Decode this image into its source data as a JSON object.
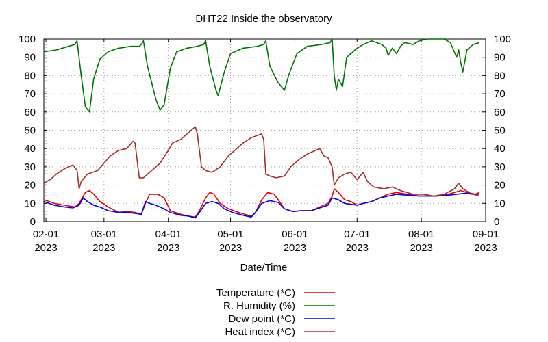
{
  "chart_data": {
    "type": "line",
    "title": "DHT22 Inside the observatory",
    "xlabel": "Date/Time",
    "ylabel": "",
    "ylim": [
      0,
      100
    ],
    "y_ticks": [
      0,
      10,
      20,
      30,
      40,
      50,
      60,
      70,
      80,
      90,
      100
    ],
    "y_ticks_mirrored_right": true,
    "xlim": [
      "2023-01-31",
      "2023-09-01"
    ],
    "x_ticks": [
      {
        "date": "2023-02-01",
        "label": "02-01",
        "year": "2023"
      },
      {
        "date": "2023-03-01",
        "label": "03-01",
        "year": "2023"
      },
      {
        "date": "2023-04-01",
        "label": "04-01",
        "year": "2023"
      },
      {
        "date": "2023-05-01",
        "label": "05-01",
        "year": "2023"
      },
      {
        "date": "2023-06-01",
        "label": "06-01",
        "year": "2023"
      },
      {
        "date": "2023-07-01",
        "label": "07-01",
        "year": "2023"
      },
      {
        "date": "2023-08-01",
        "label": "08-01",
        "year": "2023"
      },
      {
        "date": "2023-09-01",
        "label": "09-01",
        "year": "2023"
      }
    ],
    "grid": true,
    "legend_position": "bottom-center",
    "series": [
      {
        "name": "Temperature (*C)",
        "color": "#e00000",
        "points": [
          [
            "2023-01-31",
            12
          ],
          [
            "2023-02-05",
            10
          ],
          [
            "2023-02-10",
            9
          ],
          [
            "2023-02-15",
            8
          ],
          [
            "2023-02-17",
            10
          ],
          [
            "2023-02-20",
            16
          ],
          [
            "2023-02-22",
            17
          ],
          [
            "2023-02-24",
            15
          ],
          [
            "2023-02-27",
            11
          ],
          [
            "2023-03-03",
            8
          ],
          [
            "2023-03-08",
            5
          ],
          [
            "2023-03-12",
            5.5
          ],
          [
            "2023-03-16",
            5
          ],
          [
            "2023-03-19",
            4
          ],
          [
            "2023-03-21",
            10
          ],
          [
            "2023-03-23",
            15
          ],
          [
            "2023-03-27",
            15
          ],
          [
            "2023-03-30",
            13
          ],
          [
            "2023-04-02",
            6
          ],
          [
            "2023-04-07",
            4
          ],
          [
            "2023-04-11",
            3
          ],
          [
            "2023-04-14",
            2.5
          ],
          [
            "2023-04-16",
            6
          ],
          [
            "2023-04-19",
            13
          ],
          [
            "2023-04-21",
            16
          ],
          [
            "2023-04-23",
            15
          ],
          [
            "2023-04-26",
            10
          ],
          [
            "2023-04-30",
            7
          ],
          [
            "2023-05-05",
            5
          ],
          [
            "2023-05-11",
            3
          ],
          [
            "2023-05-13",
            5
          ],
          [
            "2023-05-16",
            12
          ],
          [
            "2023-05-19",
            16
          ],
          [
            "2023-05-22",
            15
          ],
          [
            "2023-05-24",
            12
          ],
          [
            "2023-05-27",
            7
          ],
          [
            "2023-05-31",
            5.5
          ],
          [
            "2023-06-04",
            6
          ],
          [
            "2023-06-09",
            6
          ],
          [
            "2023-06-13",
            8
          ],
          [
            "2023-06-17",
            10
          ],
          [
            "2023-06-19",
            14
          ],
          [
            "2023-06-20",
            18
          ],
          [
            "2023-06-22",
            16
          ],
          [
            "2023-06-25",
            12
          ],
          [
            "2023-06-28",
            11
          ],
          [
            "2023-07-01",
            9
          ],
          [
            "2023-07-04",
            10
          ],
          [
            "2023-07-08",
            11
          ],
          [
            "2023-07-12",
            13
          ],
          [
            "2023-07-16",
            15
          ],
          [
            "2023-07-20",
            16
          ],
          [
            "2023-07-25",
            15
          ],
          [
            "2023-07-31",
            14
          ],
          [
            "2023-08-08",
            14
          ],
          [
            "2023-08-14",
            15
          ],
          [
            "2023-08-17",
            16
          ],
          [
            "2023-08-20",
            17
          ],
          [
            "2023-08-23",
            16
          ],
          [
            "2023-08-27",
            15
          ],
          [
            "2023-08-29",
            16
          ]
        ]
      },
      {
        "name": "R. Humidity (%)",
        "color": "#007000",
        "points": [
          [
            "2023-01-31",
            93
          ],
          [
            "2023-02-06",
            94
          ],
          [
            "2023-02-12",
            96
          ],
          [
            "2023-02-15",
            97
          ],
          [
            "2023-02-16",
            99
          ],
          [
            "2023-02-18",
            80
          ],
          [
            "2023-02-20",
            63
          ],
          [
            "2023-02-22",
            60
          ],
          [
            "2023-02-24",
            78
          ],
          [
            "2023-02-27",
            89
          ],
          [
            "2023-03-03",
            93
          ],
          [
            "2023-03-08",
            95
          ],
          [
            "2023-03-14",
            96
          ],
          [
            "2023-03-18",
            96
          ],
          [
            "2023-03-19",
            97
          ],
          [
            "2023-03-20",
            99
          ],
          [
            "2023-03-22",
            85
          ],
          [
            "2023-03-24",
            76
          ],
          [
            "2023-03-26",
            67
          ],
          [
            "2023-03-28",
            61
          ],
          [
            "2023-03-30",
            64
          ],
          [
            "2023-04-02",
            84
          ],
          [
            "2023-04-05",
            93
          ],
          [
            "2023-04-10",
            95
          ],
          [
            "2023-04-15",
            96
          ],
          [
            "2023-04-18",
            97
          ],
          [
            "2023-04-19",
            99
          ],
          [
            "2023-04-21",
            85
          ],
          [
            "2023-04-24",
            72
          ],
          [
            "2023-04-25",
            69
          ],
          [
            "2023-04-28",
            82
          ],
          [
            "2023-05-01",
            92
          ],
          [
            "2023-05-07",
            95
          ],
          [
            "2023-05-14",
            96
          ],
          [
            "2023-05-17",
            97
          ],
          [
            "2023-05-18",
            99
          ],
          [
            "2023-05-20",
            85
          ],
          [
            "2023-05-24",
            76
          ],
          [
            "2023-05-27",
            72
          ],
          [
            "2023-05-29",
            80
          ],
          [
            "2023-06-02",
            92
          ],
          [
            "2023-06-07",
            96
          ],
          [
            "2023-06-14",
            97
          ],
          [
            "2023-06-18",
            98
          ],
          [
            "2023-06-19",
            100
          ],
          [
            "2023-06-20",
            80
          ],
          [
            "2023-06-21",
            72
          ],
          [
            "2023-06-22",
            78
          ],
          [
            "2023-06-24",
            74
          ],
          [
            "2023-06-26",
            90
          ],
          [
            "2023-07-01",
            95
          ],
          [
            "2023-07-04",
            97
          ],
          [
            "2023-07-08",
            99
          ],
          [
            "2023-07-13",
            97
          ],
          [
            "2023-07-15",
            95
          ],
          [
            "2023-07-16",
            91
          ],
          [
            "2023-07-18",
            95
          ],
          [
            "2023-07-20",
            92
          ],
          [
            "2023-07-22",
            96
          ],
          [
            "2023-07-24",
            98
          ],
          [
            "2023-07-28",
            97
          ],
          [
            "2023-07-31",
            99
          ],
          [
            "2023-08-04",
            100
          ],
          [
            "2023-08-12",
            100
          ],
          [
            "2023-08-15",
            98
          ],
          [
            "2023-08-18",
            90
          ],
          [
            "2023-08-19",
            94
          ],
          [
            "2023-08-20",
            87
          ],
          [
            "2023-08-21",
            82
          ],
          [
            "2023-08-23",
            94
          ],
          [
            "2023-08-26",
            97
          ],
          [
            "2023-08-29",
            98
          ]
        ]
      },
      {
        "name": "Dew point (*C)",
        "color": "#0000e0",
        "points": [
          [
            "2023-01-31",
            11
          ],
          [
            "2023-02-05",
            9
          ],
          [
            "2023-02-10",
            8
          ],
          [
            "2023-02-14",
            7.5
          ],
          [
            "2023-02-17",
            9
          ],
          [
            "2023-02-19",
            13
          ],
          [
            "2023-02-21",
            11
          ],
          [
            "2023-02-24",
            9
          ],
          [
            "2023-02-27",
            8
          ],
          [
            "2023-03-03",
            6
          ],
          [
            "2023-03-08",
            5
          ],
          [
            "2023-03-12",
            5
          ],
          [
            "2023-03-16",
            4.5
          ],
          [
            "2023-03-19",
            4
          ],
          [
            "2023-03-21",
            11
          ],
          [
            "2023-03-23",
            10
          ],
          [
            "2023-03-26",
            9
          ],
          [
            "2023-03-30",
            7
          ],
          [
            "2023-04-02",
            5
          ],
          [
            "2023-04-07",
            3.5
          ],
          [
            "2023-04-11",
            3
          ],
          [
            "2023-04-14",
            2
          ],
          [
            "2023-04-16",
            5
          ],
          [
            "2023-04-19",
            10
          ],
          [
            "2023-04-22",
            11
          ],
          [
            "2023-04-25",
            10
          ],
          [
            "2023-04-28",
            7
          ],
          [
            "2023-05-02",
            5
          ],
          [
            "2023-05-07",
            3.5
          ],
          [
            "2023-05-11",
            2.5
          ],
          [
            "2023-05-13",
            5
          ],
          [
            "2023-05-16",
            10
          ],
          [
            "2023-05-20",
            11.5
          ],
          [
            "2023-05-24",
            10.5
          ],
          [
            "2023-05-27",
            7
          ],
          [
            "2023-05-31",
            5.5
          ],
          [
            "2023-06-04",
            6
          ],
          [
            "2023-06-09",
            6
          ],
          [
            "2023-06-13",
            7.5
          ],
          [
            "2023-06-17",
            9
          ],
          [
            "2023-06-19",
            13
          ],
          [
            "2023-06-22",
            12
          ],
          [
            "2023-06-25",
            10
          ],
          [
            "2023-06-28",
            9.5
          ],
          [
            "2023-07-01",
            9
          ],
          [
            "2023-07-04",
            10
          ],
          [
            "2023-07-08",
            11
          ],
          [
            "2023-07-12",
            13
          ],
          [
            "2023-07-16",
            14
          ],
          [
            "2023-07-20",
            15
          ],
          [
            "2023-07-25",
            14.5
          ],
          [
            "2023-07-31",
            14
          ],
          [
            "2023-08-08",
            14
          ],
          [
            "2023-08-14",
            14.5
          ],
          [
            "2023-08-18",
            15
          ],
          [
            "2023-08-22",
            15.5
          ],
          [
            "2023-08-26",
            15
          ],
          [
            "2023-08-29",
            15
          ]
        ]
      },
      {
        "name": "Heat index (*C)",
        "color": "#a52a2a",
        "points": [
          [
            "2023-01-31",
            21
          ],
          [
            "2023-02-03",
            23
          ],
          [
            "2023-02-06",
            26
          ],
          [
            "2023-02-10",
            29
          ],
          [
            "2023-02-14",
            31
          ],
          [
            "2023-02-16",
            28
          ],
          [
            "2023-02-17",
            18
          ],
          [
            "2023-02-18",
            22
          ],
          [
            "2023-02-21",
            26
          ],
          [
            "2023-02-26",
            28
          ],
          [
            "2023-03-01",
            32
          ],
          [
            "2023-03-04",
            36
          ],
          [
            "2023-03-08",
            39
          ],
          [
            "2023-03-12",
            40
          ],
          [
            "2023-03-15",
            44
          ],
          [
            "2023-03-16",
            43
          ],
          [
            "2023-03-18",
            24
          ],
          [
            "2023-03-20",
            24
          ],
          [
            "2023-03-23",
            27
          ],
          [
            "2023-03-28",
            32
          ],
          [
            "2023-04-01",
            39
          ],
          [
            "2023-04-03",
            43
          ],
          [
            "2023-04-07",
            45
          ],
          [
            "2023-04-11",
            49
          ],
          [
            "2023-04-14",
            52
          ],
          [
            "2023-04-15",
            48
          ],
          [
            "2023-04-17",
            30
          ],
          [
            "2023-04-19",
            28
          ],
          [
            "2023-04-22",
            27
          ],
          [
            "2023-04-26",
            30
          ],
          [
            "2023-04-30",
            36
          ],
          [
            "2023-05-03",
            39
          ],
          [
            "2023-05-07",
            43
          ],
          [
            "2023-05-11",
            46
          ],
          [
            "2023-05-16",
            48
          ],
          [
            "2023-05-17",
            45
          ],
          [
            "2023-05-18",
            26
          ],
          [
            "2023-05-20",
            25
          ],
          [
            "2023-05-23",
            24
          ],
          [
            "2023-05-27",
            25
          ],
          [
            "2023-05-30",
            30
          ],
          [
            "2023-06-03",
            34
          ],
          [
            "2023-06-07",
            37
          ],
          [
            "2023-06-11",
            39
          ],
          [
            "2023-06-13",
            40
          ],
          [
            "2023-06-15",
            36
          ],
          [
            "2023-06-17",
            35
          ],
          [
            "2023-06-19",
            30
          ],
          [
            "2023-06-20",
            20
          ],
          [
            "2023-06-22",
            24
          ],
          [
            "2023-06-25",
            26
          ],
          [
            "2023-06-28",
            27
          ],
          [
            "2023-07-01",
            23
          ],
          [
            "2023-07-04",
            27
          ],
          [
            "2023-07-06",
            22
          ],
          [
            "2023-07-09",
            19
          ],
          [
            "2023-07-14",
            18
          ],
          [
            "2023-07-18",
            19
          ],
          [
            "2023-07-22",
            17
          ],
          [
            "2023-07-25",
            16
          ],
          [
            "2023-07-28",
            15
          ],
          [
            "2023-08-02",
            15
          ],
          [
            "2023-08-07",
            14
          ],
          [
            "2023-08-12",
            15
          ],
          [
            "2023-08-17",
            18
          ],
          [
            "2023-08-19",
            21
          ],
          [
            "2023-08-21",
            18
          ],
          [
            "2023-08-24",
            16
          ],
          [
            "2023-08-26",
            15
          ],
          [
            "2023-08-29",
            14
          ]
        ]
      }
    ]
  }
}
